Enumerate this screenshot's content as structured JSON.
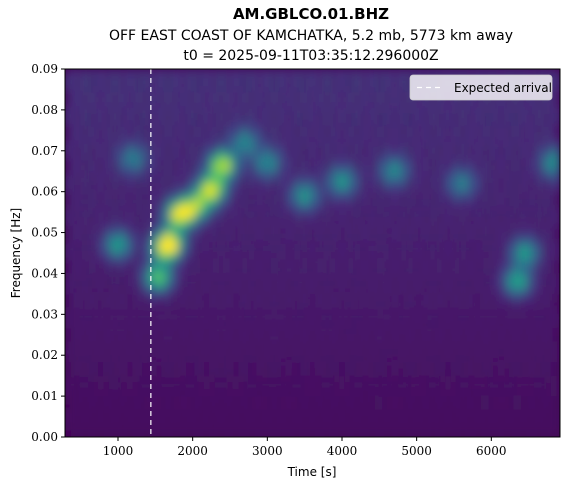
{
  "chart_data": {
    "type": "heatmap",
    "title": "AM.GBLCO.01.BHZ",
    "subtitle": "OFF EAST COAST OF KAMCHATKA, 5.2 mb, 5773 km away",
    "subtitle2": "t0 = 2025-09-11T03:35:12.296000Z",
    "xlabel": "Time [s]",
    "ylabel": "Frequency [Hz]",
    "xlim": [
      290,
      6920
    ],
    "ylim": [
      0,
      0.09
    ],
    "x_ticks": [
      1000,
      2000,
      3000,
      4000,
      5000,
      6000
    ],
    "x_tick_labels": [
      "1000",
      "2000",
      "3000",
      "4000",
      "5000",
      "6000"
    ],
    "y_ticks": [
      0,
      0.01,
      0.02,
      0.03,
      0.04,
      0.05,
      0.06,
      0.07,
      0.08,
      0.09
    ],
    "y_tick_labels": [
      "0.00",
      "0.01",
      "0.02",
      "0.03",
      "0.04",
      "0.05",
      "0.06",
      "0.07",
      "0.08",
      "0.09"
    ],
    "colormap": "viridis",
    "colors": {
      "background": "#440154",
      "arrival_line": "#ffffff",
      "legend_bg": "#ffffff"
    },
    "legend": {
      "position": "top-right",
      "entries": [
        "Expected arrival"
      ]
    },
    "expected_arrival_time": 1440,
    "hotspots": [
      {
        "t": 1830,
        "f": 0.0545,
        "intensity": 1.0
      },
      {
        "t": 2250,
        "f": 0.0605,
        "intensity": 0.9
      },
      {
        "t": 2400,
        "f": 0.0665,
        "intensity": 0.85
      },
      {
        "t": 1700,
        "f": 0.0475,
        "intensity": 0.75
      },
      {
        "t": 1540,
        "f": 0.039,
        "intensity": 0.7
      },
      {
        "t": 1620,
        "f": 0.046,
        "intensity": 0.6
      },
      {
        "t": 2050,
        "f": 0.0565,
        "intensity": 0.65
      },
      {
        "t": 1000,
        "f": 0.047,
        "intensity": 0.5
      },
      {
        "t": 6350,
        "f": 0.038,
        "intensity": 0.55
      },
      {
        "t": 6450,
        "f": 0.045,
        "intensity": 0.5
      },
      {
        "t": 3500,
        "f": 0.059,
        "intensity": 0.45
      },
      {
        "t": 4000,
        "f": 0.0625,
        "intensity": 0.45
      },
      {
        "t": 4700,
        "f": 0.065,
        "intensity": 0.4
      },
      {
        "t": 3000,
        "f": 0.067,
        "intensity": 0.4
      },
      {
        "t": 2700,
        "f": 0.072,
        "intensity": 0.38
      },
      {
        "t": 6850,
        "f": 0.067,
        "intensity": 0.45
      },
      {
        "t": 5600,
        "f": 0.062,
        "intensity": 0.35
      },
      {
        "t": 1200,
        "f": 0.068,
        "intensity": 0.35
      }
    ]
  }
}
